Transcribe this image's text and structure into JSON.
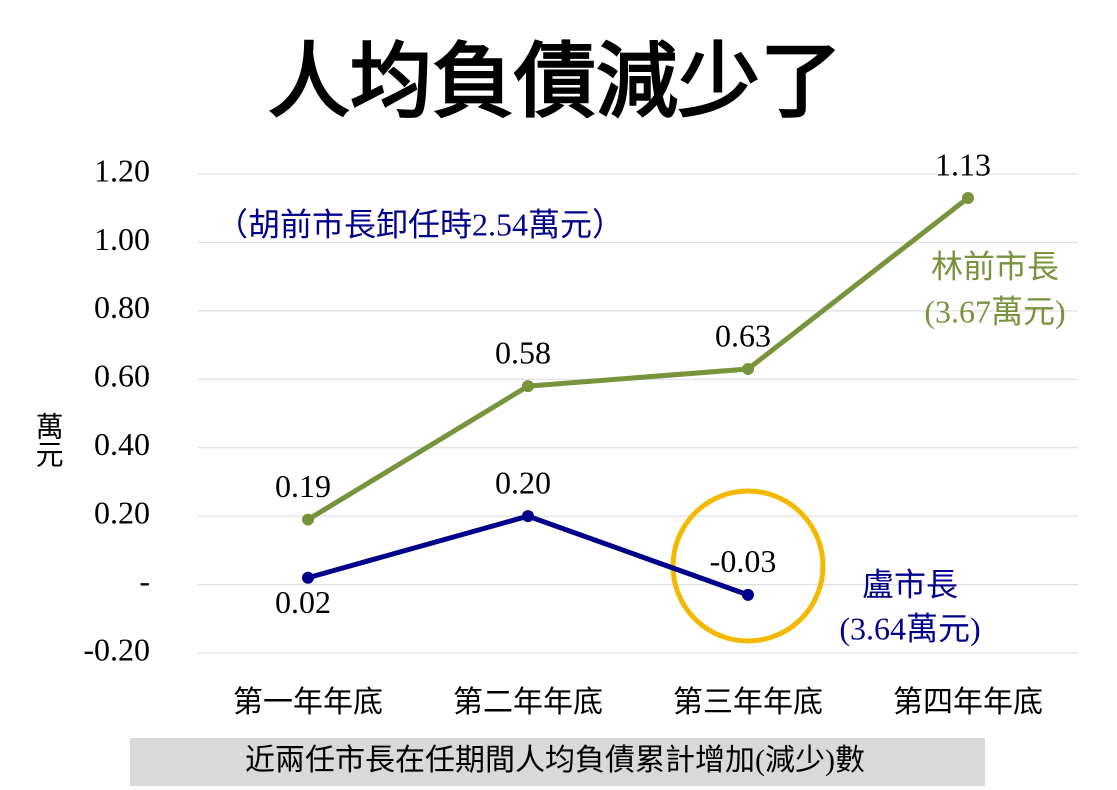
{
  "chart_data": {
    "type": "line",
    "title": "人均負債減少了",
    "y_label": "萬元",
    "footer": "近兩任市長在任期間人均負債累計增加(減少)數",
    "annotations": [
      "（胡前市長卸任時2.54萬元）",
      "(3.67萬元)",
      "(3.64萬元)"
    ],
    "categories": [
      "第一年年底",
      "第二年年底",
      "第三年年底",
      "第四年年底"
    ],
    "ylim": [
      -0.2,
      1.2
    ],
    "yticks": [
      {
        "value": -0.2,
        "label": "-0.20"
      },
      {
        "value": 0,
        "label": "-"
      },
      {
        "value": 0.2,
        "label": "0.20"
      },
      {
        "value": 0.4,
        "label": "0.40"
      },
      {
        "value": 0.6,
        "label": "0.60"
      },
      {
        "value": 0.8,
        "label": "0.80"
      },
      {
        "value": 1.0,
        "label": "1.00"
      },
      {
        "value": 1.2,
        "label": "1.20"
      }
    ],
    "grid": true,
    "series": [
      {
        "name": "林前市長",
        "color": "#77933c",
        "values": [
          0.19,
          0.58,
          0.63,
          1.13
        ],
        "value_labels": [
          "0.19",
          "0.58",
          "0.63",
          "1.13"
        ]
      },
      {
        "name": "盧市長",
        "color": "#00008b",
        "values": [
          0.02,
          0.2,
          -0.03,
          null
        ],
        "value_labels": [
          "0.02",
          "0.20",
          "-0.03",
          null
        ]
      }
    ]
  }
}
